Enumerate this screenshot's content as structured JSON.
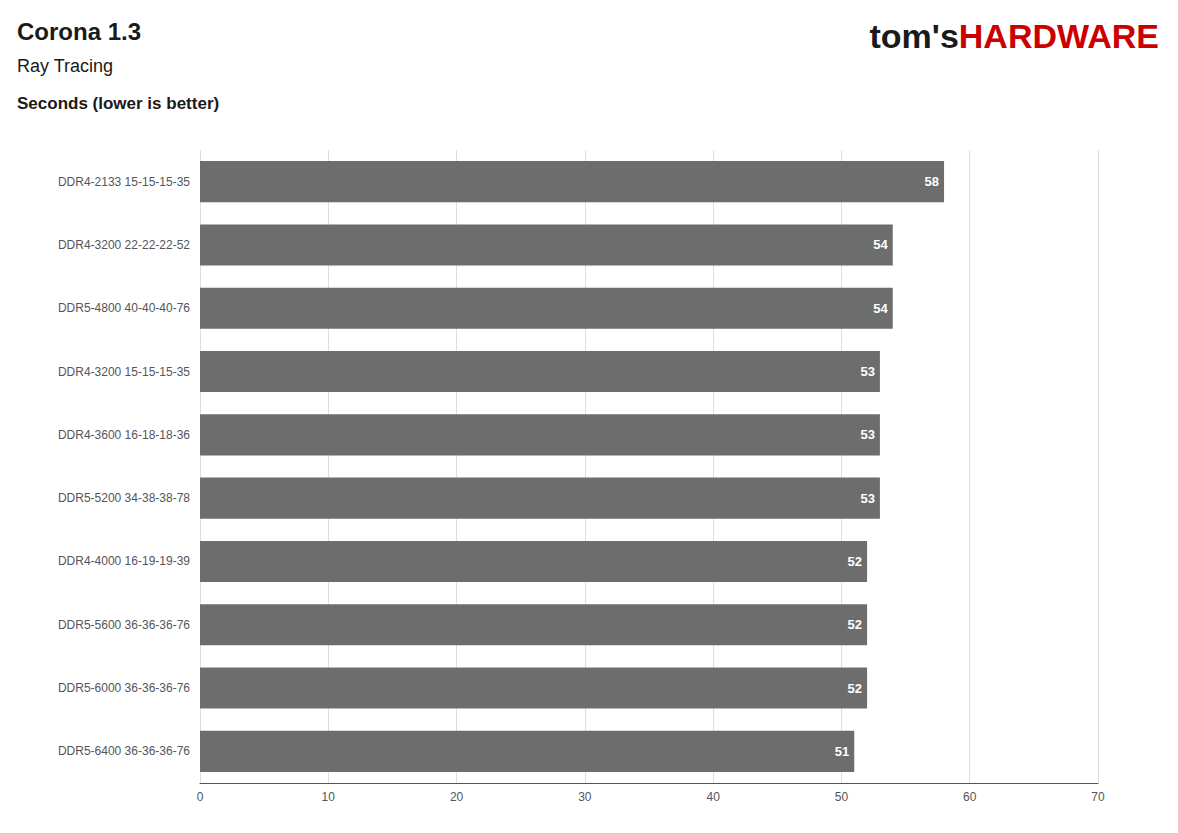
{
  "chart_data": {
    "type": "bar",
    "orientation": "horizontal",
    "title": "Corona 1.3",
    "subtitle": "Ray Tracing",
    "xlabel": "Seconds (lower is better)",
    "annotations": [
      {
        "text": "tom's",
        "color": "#1a1a1a"
      },
      {
        "text": "HARDWARE",
        "color": "#cc0000"
      }
    ],
    "categories": [
      "DDR4-2133 15-15-15-35",
      "DDR4-3200 22-22-22-52",
      "DDR5-4800 40-40-40-76",
      "DDR4-3200 15-15-15-35",
      "DDR4-3600 16-18-18-36",
      "DDR5-5200 34-38-38-78",
      "DDR4-4000 16-19-19-39",
      "DDR5-5600 36-36-36-76",
      "DDR5-6000 36-36-36-76",
      "DDR5-6400 36-36-36-76"
    ],
    "values": [
      58,
      54,
      54,
      53,
      53,
      53,
      52,
      52,
      52,
      51
    ],
    "color": "#6d6d6d",
    "xlim": [
      0,
      70
    ],
    "xticks": [
      0,
      10,
      20,
      30,
      40,
      50,
      60,
      70
    ],
    "grid": true,
    "data_labels": true
  }
}
